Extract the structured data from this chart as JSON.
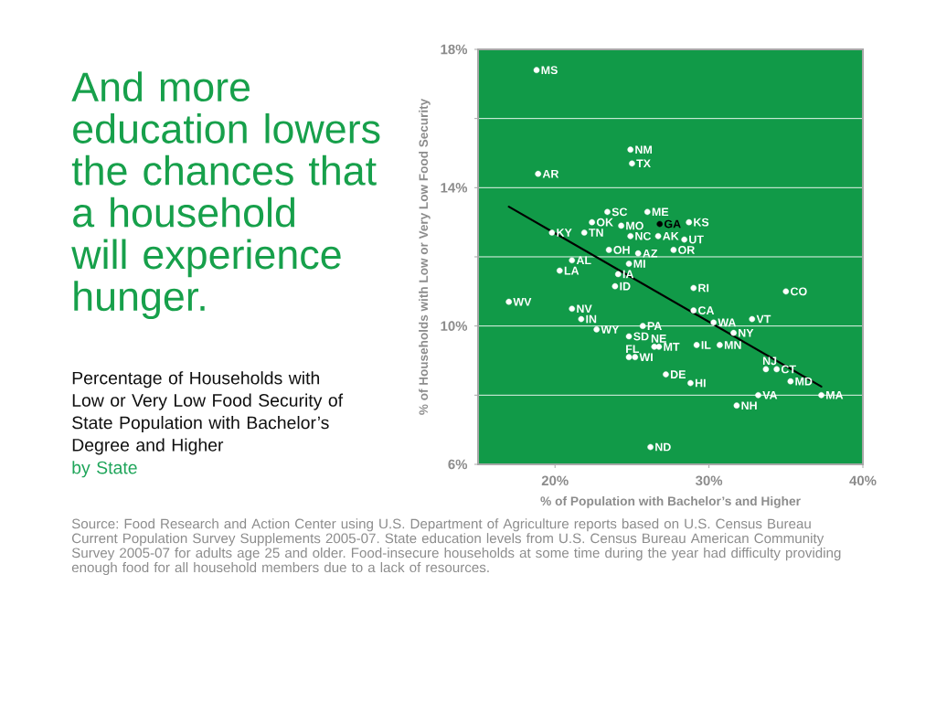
{
  "chart_data": {
    "type": "scatter",
    "title": "And more education lowers the chances that a household will experience hunger.",
    "subtitle": "Percentage of Households with Low or Very Low Food Security of State Population with Bachelor’s Degree and Higher",
    "xlabel": "% of Population with Bachelor’s and Higher",
    "ylabel": "% of Households with Low or Very Low Food Security",
    "xlim": [
      15,
      40
    ],
    "ylim": [
      6,
      18
    ],
    "xticks": [
      {
        "value": 20,
        "label": "20%"
      },
      {
        "value": 30,
        "label": "30%"
      },
      {
        "value": 40,
        "label": "40%"
      }
    ],
    "yticks": [
      {
        "value": 6,
        "label": "6%"
      },
      {
        "value": 8,
        "label": null
      },
      {
        "value": 10,
        "label": "10%"
      },
      {
        "value": 12,
        "label": null
      },
      {
        "value": 14,
        "label": "14%"
      },
      {
        "value": 16,
        "label": null
      },
      {
        "value": 18,
        "label": "18%"
      }
    ],
    "grid": "y",
    "marker": "circle",
    "series": [
      {
        "type": "line",
        "x": [
          17.0,
          37.3
        ],
        "values": [
          13.45,
          8.25
        ],
        "color": "#000000",
        "marker": "none"
      },
      {
        "x": [
          18.8,
          24.9,
          25.0,
          18.9,
          23.4,
          26.0,
          22.4,
          26.8,
          28.7,
          24.3,
          19.8,
          21.9,
          24.9,
          26.7,
          28.4,
          23.5,
          25.4,
          27.7,
          21.1,
          24.8,
          20.3,
          24.1,
          23.9,
          29.0,
          35.0,
          17.0,
          21.1,
          29.0,
          21.7,
          30.3,
          32.8,
          25.7,
          22.7,
          31.6,
          24.8,
          26.45,
          26.75,
          29.2,
          30.7,
          24.8,
          25.2,
          33.7,
          34.4,
          27.2,
          35.3,
          28.8,
          33.2,
          37.3,
          31.8,
          26.2
        ],
        "values": [
          17.4,
          15.1,
          14.7,
          14.4,
          13.3,
          13.3,
          13.0,
          12.95,
          13.0,
          12.9,
          12.7,
          12.7,
          12.6,
          12.6,
          12.5,
          12.2,
          12.1,
          12.2,
          11.9,
          11.8,
          11.6,
          11.5,
          11.15,
          11.1,
          11.0,
          10.7,
          10.5,
          10.45,
          10.2,
          10.1,
          10.2,
          10.0,
          9.9,
          9.8,
          9.7,
          9.4,
          9.4,
          9.45,
          9.45,
          9.1,
          9.1,
          8.75,
          8.75,
          8.6,
          8.4,
          8.35,
          8.0,
          8.0,
          7.7,
          6.5
        ],
        "colors": [
          "#ffffff",
          "#ffffff",
          "#ffffff",
          "#ffffff",
          "#ffffff",
          "#ffffff",
          "#ffffff",
          "#000000",
          "#ffffff",
          "#ffffff",
          "#ffffff",
          "#ffffff",
          "#ffffff",
          "#ffffff",
          "#ffffff",
          "#ffffff",
          "#ffffff",
          "#ffffff",
          "#ffffff",
          "#ffffff",
          "#ffffff",
          "#ffffff",
          "#ffffff",
          "#ffffff",
          "#ffffff",
          "#ffffff",
          "#ffffff",
          "#ffffff",
          "#ffffff",
          "#ffffff",
          "#ffffff",
          "#ffffff",
          "#ffffff",
          "#ffffff",
          "#ffffff",
          "#ffffff",
          "#ffffff",
          "#ffffff",
          "#ffffff",
          "#ffffff",
          "#ffffff",
          "#ffffff",
          "#ffffff",
          "#ffffff",
          "#ffffff",
          "#ffffff",
          "#ffffff",
          "#ffffff",
          "#ffffff",
          "#ffffff"
        ]
      }
    ],
    "annotations": [
      {
        "text": "MS",
        "x": 18.8,
        "y": 17.4
      },
      {
        "text": "NM",
        "x": 24.9,
        "y": 15.1
      },
      {
        "text": "TX",
        "x": 25.0,
        "y": 14.7
      },
      {
        "text": "AR",
        "x": 18.9,
        "y": 14.4
      },
      {
        "text": "SC",
        "x": 23.4,
        "y": 13.3
      },
      {
        "text": "ME",
        "x": 26.0,
        "y": 13.3
      },
      {
        "text": "OK",
        "x": 22.4,
        "y": 13.0
      },
      {
        "text": "GA",
        "x": 26.8,
        "y": 12.95
      },
      {
        "text": "KS",
        "x": 28.7,
        "y": 13.0
      },
      {
        "text": "MO",
        "x": 24.3,
        "y": 12.9
      },
      {
        "text": "KY",
        "x": 19.8,
        "y": 12.7
      },
      {
        "text": "TN",
        "x": 21.9,
        "y": 12.7
      },
      {
        "text": "NC",
        "x": 24.9,
        "y": 12.6
      },
      {
        "text": "AK",
        "x": 26.7,
        "y": 12.6
      },
      {
        "text": "UT",
        "x": 28.4,
        "y": 12.5
      },
      {
        "text": "OH",
        "x": 23.5,
        "y": 12.2
      },
      {
        "text": "AZ",
        "x": 25.4,
        "y": 12.1
      },
      {
        "text": "OR",
        "x": 27.7,
        "y": 12.2
      },
      {
        "text": "AL",
        "x": 21.1,
        "y": 11.9
      },
      {
        "text": "MI",
        "x": 24.8,
        "y": 11.8
      },
      {
        "text": "LA",
        "x": 20.3,
        "y": 11.6
      },
      {
        "text": "IA",
        "x": 24.1,
        "y": 11.5
      },
      {
        "text": "ID",
        "x": 23.9,
        "y": 11.15
      },
      {
        "text": "RI",
        "x": 29.0,
        "y": 11.1
      },
      {
        "text": "CO",
        "x": 35.0,
        "y": 11.0
      },
      {
        "text": "WV",
        "x": 17.0,
        "y": 10.7
      },
      {
        "text": "NV",
        "x": 21.1,
        "y": 10.5
      },
      {
        "text": "CA",
        "x": 29.0,
        "y": 10.45
      },
      {
        "text": "IN",
        "x": 21.7,
        "y": 10.2
      },
      {
        "text": "WA",
        "x": 30.3,
        "y": 10.1
      },
      {
        "text": "VT",
        "x": 32.8,
        "y": 10.2
      },
      {
        "text": "PA",
        "x": 25.7,
        "y": 10.0
      },
      {
        "text": "WY",
        "x": 22.7,
        "y": 9.9
      },
      {
        "text": "NY",
        "x": 31.6,
        "y": 9.8
      },
      {
        "text": "SD",
        "x": 24.8,
        "y": 9.7
      },
      {
        "text": "NE",
        "x": 26.45,
        "y": 9.4
      },
      {
        "text": "MT",
        "x": 26.75,
        "y": 9.4
      },
      {
        "text": "IL",
        "x": 29.2,
        "y": 9.45
      },
      {
        "text": "MN",
        "x": 30.7,
        "y": 9.45
      },
      {
        "text": "FL",
        "x": 24.8,
        "y": 9.1
      },
      {
        "text": "WI",
        "x": 25.2,
        "y": 9.1
      },
      {
        "text": "NJ",
        "x": 33.7,
        "y": 8.75
      },
      {
        "text": "CT",
        "x": 34.4,
        "y": 8.75
      },
      {
        "text": "DE",
        "x": 27.2,
        "y": 8.6
      },
      {
        "text": "MD",
        "x": 35.3,
        "y": 8.4
      },
      {
        "text": "HI",
        "x": 28.8,
        "y": 8.35
      },
      {
        "text": "VA",
        "x": 33.2,
        "y": 8.0
      },
      {
        "text": "MA",
        "x": 37.3,
        "y": 8.0
      },
      {
        "text": "NH",
        "x": 31.8,
        "y": 7.7
      },
      {
        "text": "ND",
        "x": 26.2,
        "y": 6.5
      },
      "by State",
      "Source: Food Research and Action Center using U.S. Department of Agriculture reports based on U.S. Census Bureau Current Population Survey Supplements 2005-07. State education levels from U.S. Census Bureau American Community Survey 2005-07 for adults age 25 and older. Food-insecure households at some time during the year had difficulty providing enough food for all household members due to a lack of resources."
    ]
  }
}
